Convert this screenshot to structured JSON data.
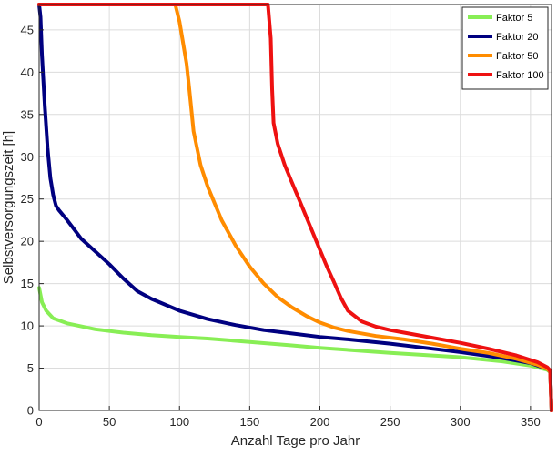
{
  "chart_data": {
    "type": "line",
    "title": "",
    "xlabel": "Anzahl Tage pro Jahr",
    "ylabel": "Selbstversorgungszeit [h]",
    "xlim": [
      0,
      365
    ],
    "ylim": [
      0,
      48
    ],
    "xticks": [
      0,
      50,
      100,
      150,
      200,
      250,
      300,
      350
    ],
    "yticks": [
      0,
      5,
      10,
      15,
      20,
      25,
      30,
      35,
      40,
      45
    ],
    "grid": true,
    "legend_position": "top-right",
    "series": [
      {
        "name": "Faktor 5",
        "color": "#88ee55",
        "x": [
          0,
          2,
          5,
          10,
          20,
          40,
          60,
          80,
          100,
          120,
          150,
          180,
          200,
          250,
          300,
          330,
          350,
          362,
          364,
          365
        ],
        "y": [
          14.5,
          12.8,
          11.8,
          10.9,
          10.3,
          9.6,
          9.2,
          8.9,
          8.7,
          8.5,
          8.1,
          7.7,
          7.4,
          6.8,
          6.3,
          5.8,
          5.3,
          4.8,
          4.5,
          0
        ]
      },
      {
        "name": "Faktor 20",
        "color": "#000080",
        "x": [
          0,
          1,
          2,
          4,
          6,
          8,
          10,
          12,
          14,
          20,
          30,
          40,
          50,
          60,
          70,
          80,
          90,
          100,
          120,
          140,
          160,
          180,
          200,
          220,
          250,
          280,
          300,
          330,
          350,
          362,
          364,
          365
        ],
        "y": [
          48,
          46.5,
          42,
          36,
          31,
          27.5,
          25.5,
          24.2,
          23.7,
          22.5,
          20.3,
          18.8,
          17.3,
          15.6,
          14.1,
          13.2,
          12.5,
          11.8,
          10.8,
          10.1,
          9.5,
          9.1,
          8.7,
          8.4,
          7.9,
          7.3,
          6.9,
          6.2,
          5.6,
          4.9,
          4.6,
          0
        ]
      },
      {
        "name": "Faktor 50",
        "color": "#ff8c00",
        "x": [
          0,
          97,
          100,
          103,
          105,
          107,
          110,
          115,
          120,
          130,
          140,
          150,
          160,
          170,
          180,
          190,
          200,
          210,
          220,
          240,
          260,
          280,
          300,
          320,
          340,
          355,
          362,
          364,
          365
        ],
        "y": [
          48,
          48,
          46,
          43,
          41,
          38,
          33,
          29,
          26.5,
          22.5,
          19.5,
          17,
          15,
          13.4,
          12.2,
          11.2,
          10.4,
          9.8,
          9.4,
          8.8,
          8.4,
          7.9,
          7.3,
          6.8,
          6.1,
          5.4,
          4.9,
          4.6,
          0
        ]
      },
      {
        "name": "Faktor 100",
        "color": "#ee1111",
        "x": [
          0,
          163,
          165,
          166,
          167,
          170,
          175,
          180,
          185,
          190,
          195,
          200,
          205,
          210,
          215,
          220,
          230,
          240,
          250,
          260,
          280,
          300,
          320,
          340,
          355,
          362,
          364,
          365
        ],
        "y": [
          48,
          48,
          44,
          38,
          34,
          31.5,
          29,
          27,
          25,
          23,
          21,
          19,
          17,
          15.2,
          13.3,
          11.8,
          10.5,
          9.9,
          9.5,
          9.2,
          8.6,
          8.0,
          7.3,
          6.5,
          5.7,
          5.1,
          4.7,
          0
        ]
      }
    ]
  }
}
